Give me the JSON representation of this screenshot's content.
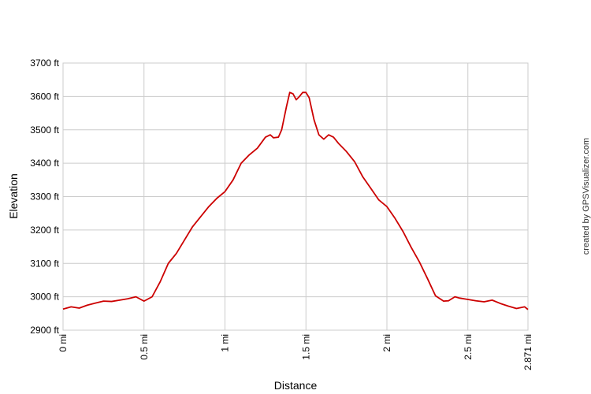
{
  "chart_data": {
    "type": "line",
    "title": "",
    "xlabel": "Distance",
    "ylabel": "Elevation",
    "xlim": [
      0,
      2.871
    ],
    "ylim": [
      2900,
      3700
    ],
    "grid": true,
    "legend": "none",
    "x_ticks": [
      {
        "value": 0,
        "label": "0 mi"
      },
      {
        "value": 0.5,
        "label": "0.5 mi"
      },
      {
        "value": 1,
        "label": "1 mi"
      },
      {
        "value": 1.5,
        "label": "1.5 mi"
      },
      {
        "value": 2,
        "label": "2 mi"
      },
      {
        "value": 2.5,
        "label": "2.5 mi"
      },
      {
        "value": 2.871,
        "label": "2.871 mi"
      }
    ],
    "y_ticks": [
      {
        "value": 2900,
        "label": "2900 ft"
      },
      {
        "value": 3000,
        "label": "3000 ft"
      },
      {
        "value": 3100,
        "label": "3100 ft"
      },
      {
        "value": 3200,
        "label": "3200 ft"
      },
      {
        "value": 3300,
        "label": "3300 ft"
      },
      {
        "value": 3400,
        "label": "3400 ft"
      },
      {
        "value": 3500,
        "label": "3500 ft"
      },
      {
        "value": 3600,
        "label": "3600 ft"
      },
      {
        "value": 3700,
        "label": "3700 ft"
      }
    ],
    "series": [
      {
        "color": "#cc0000",
        "points": [
          [
            0,
            2963
          ],
          [
            0.05,
            2970
          ],
          [
            0.1,
            2966
          ],
          [
            0.15,
            2975
          ],
          [
            0.2,
            2981
          ],
          [
            0.25,
            2987
          ],
          [
            0.3,
            2986
          ],
          [
            0.35,
            2990
          ],
          [
            0.4,
            2994
          ],
          [
            0.45,
            3000
          ],
          [
            0.5,
            2987
          ],
          [
            0.55,
            3000
          ],
          [
            0.6,
            3045
          ],
          [
            0.65,
            3100
          ],
          [
            0.7,
            3130
          ],
          [
            0.75,
            3170
          ],
          [
            0.8,
            3210
          ],
          [
            0.85,
            3240
          ],
          [
            0.9,
            3270
          ],
          [
            0.95,
            3295
          ],
          [
            1.0,
            3315
          ],
          [
            1.05,
            3350
          ],
          [
            1.1,
            3400
          ],
          [
            1.15,
            3425
          ],
          [
            1.2,
            3445
          ],
          [
            1.25,
            3478
          ],
          [
            1.28,
            3485
          ],
          [
            1.3,
            3476
          ],
          [
            1.33,
            3478
          ],
          [
            1.35,
            3500
          ],
          [
            1.38,
            3570
          ],
          [
            1.4,
            3612
          ],
          [
            1.42,
            3608
          ],
          [
            1.44,
            3590
          ],
          [
            1.46,
            3600
          ],
          [
            1.48,
            3612
          ],
          [
            1.5,
            3612
          ],
          [
            1.52,
            3596
          ],
          [
            1.55,
            3530
          ],
          [
            1.58,
            3485
          ],
          [
            1.61,
            3472
          ],
          [
            1.64,
            3485
          ],
          [
            1.67,
            3478
          ],
          [
            1.7,
            3460
          ],
          [
            1.75,
            3435
          ],
          [
            1.8,
            3405
          ],
          [
            1.85,
            3360
          ],
          [
            1.9,
            3325
          ],
          [
            1.95,
            3290
          ],
          [
            2.0,
            3270
          ],
          [
            2.05,
            3235
          ],
          [
            2.1,
            3195
          ],
          [
            2.15,
            3148
          ],
          [
            2.2,
            3105
          ],
          [
            2.25,
            3055
          ],
          [
            2.3,
            3003
          ],
          [
            2.35,
            2987
          ],
          [
            2.38,
            2988
          ],
          [
            2.42,
            3000
          ],
          [
            2.45,
            2996
          ],
          [
            2.5,
            2992
          ],
          [
            2.55,
            2988
          ],
          [
            2.6,
            2985
          ],
          [
            2.65,
            2990
          ],
          [
            2.7,
            2980
          ],
          [
            2.75,
            2972
          ],
          [
            2.8,
            2965
          ],
          [
            2.85,
            2970
          ],
          [
            2.871,
            2962
          ]
        ]
      }
    ],
    "credit_text": "created by GPSVisualizer.com",
    "colors": {
      "line": "#cc0000",
      "grid": "#cccccc",
      "plot_border": "#cccccc",
      "background": "#ffffff"
    }
  }
}
